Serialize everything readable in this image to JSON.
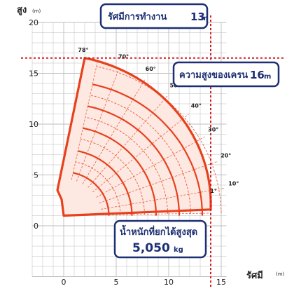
{
  "chart_data": {
    "type": "line",
    "title": "",
    "xlabel": "รัศมี",
    "xunit": "(m)",
    "ylabel": "สูง",
    "yunit": "(m)",
    "xlim": [
      -3,
      15.5
    ],
    "ylim": [
      -5,
      20
    ],
    "x_ticks": [
      0,
      5,
      10,
      15
    ],
    "y_ticks": [
      0,
      5,
      10,
      15,
      20
    ],
    "grid": true,
    "pivot": [
      0,
      1
    ],
    "boom_min_length": 3.6,
    "boom_max_length": 16.0,
    "boom_angles_deg": [
      78,
      70,
      60,
      50,
      40,
      30,
      20,
      10,
      1
    ],
    "solid_arc_radii": [
      4.3,
      6.5,
      8.8,
      11.0,
      13.2
    ],
    "dashed_arc_radii": [
      5.4,
      7.7,
      9.9,
      12.1,
      15.0
    ],
    "envelope": {
      "tip_top": [
        2.0,
        16.5
      ],
      "tip_end": [
        14.0,
        1.6
      ],
      "base_points": [
        [
          -0.6,
          3.5
        ],
        [
          -0.2,
          2.6
        ],
        [
          0.0,
          1.0
        ]
      ]
    },
    "reference_lines": [
      {
        "axis": "x",
        "value": 14.0,
        "style": "dotted"
      },
      {
        "axis": "y",
        "value": 16.5,
        "style": "dotted"
      }
    ],
    "annotations": [
      {
        "id": "radius",
        "text": "รัศมีการทำงาน",
        "value": "13",
        "unit": "m"
      },
      {
        "id": "height",
        "text": "ความสูงของเครน",
        "value": "16",
        "unit": "m"
      },
      {
        "id": "load",
        "text": "น้ำหนักที่ยกได้สูงสุด",
        "value": "5,050",
        "unit": "kg"
      }
    ],
    "colors": {
      "boom": "#e8401c",
      "fill": "#fde8e2",
      "grid": "#bdbdbd",
      "ref_line": "#d81c1c",
      "callout": "#1d2f73"
    }
  }
}
